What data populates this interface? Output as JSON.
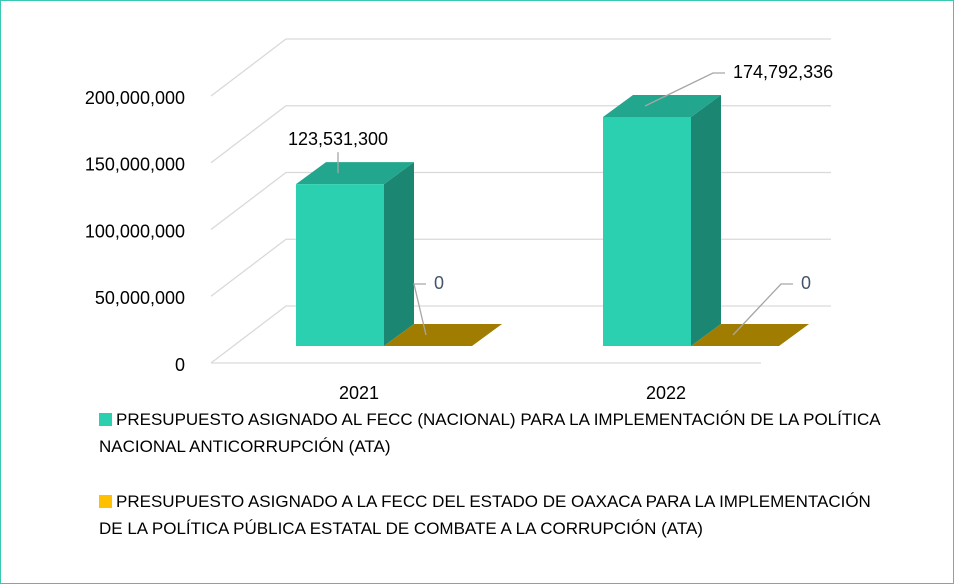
{
  "chart_data": {
    "type": "bar3d",
    "categories": [
      "2021",
      "2022"
    ],
    "series": [
      {
        "name": "PRESUPUESTO ASIGNADO AL FECC (NACIONAL) PARA LA IMPLEMENTACIÓN DE LA POLÍTICA NACIONAL ANTICORRUPCIÓN (ATA)",
        "color": "#2ad0b0",
        "values": [
          123531300,
          174792336
        ],
        "value_labels": [
          "123,531,300",
          "174,792,336"
        ]
      },
      {
        "name": "PRESUPUESTO ASIGNADO A LA FECC DEL ESTADO DE OAXACA PARA LA IMPLEMENTACIÓN DE LA POLÍTICA PÚBLICA ESTATAL DE COMBATE A LA CORRUPCIÓN (ATA)",
        "color": "#c89b00",
        "values": [
          0,
          0
        ]
      }
    ],
    "ylim": [
      0,
      200000000
    ],
    "yticks": [
      0,
      {
        "value": 50000000,
        "label": "50,000,000"
      },
      {
        "value": 100000000,
        "label": "100,000,000"
      },
      {
        "value": 150000000,
        "label": "150,000,000"
      },
      {
        "value": 200000000,
        "label": "200,000,000"
      }
    ],
    "grid": true
  }
}
